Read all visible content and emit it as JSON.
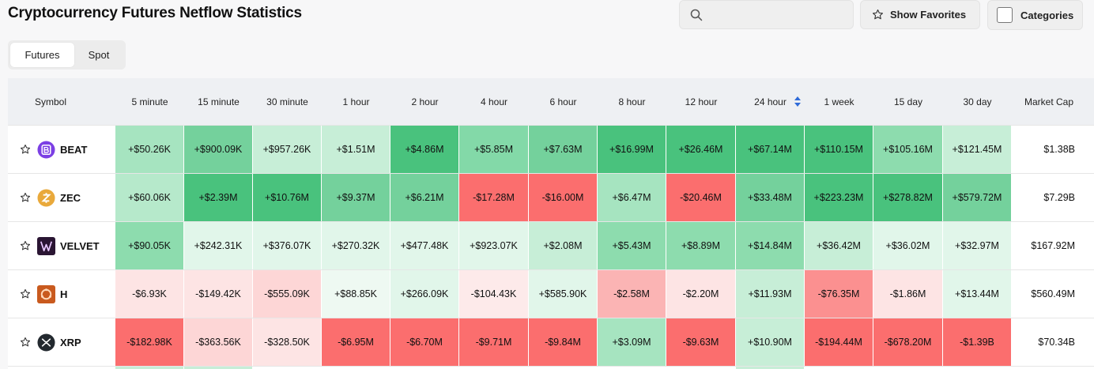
{
  "page": {
    "title": "Cryptocurrency Futures Netflow Statistics"
  },
  "search": {
    "value": "",
    "placeholder": ""
  },
  "buttons": {
    "show_favorites": "Show Favorites",
    "categories": "Categories"
  },
  "tabs": [
    {
      "label": "Futures",
      "active": true
    },
    {
      "label": "Spot",
      "active": false
    }
  ],
  "table": {
    "columns": [
      "Symbol",
      "5 minute",
      "15 minute",
      "30 minute",
      "1 hour",
      "2 hour",
      "4 hour",
      "6 hour",
      "8 hour",
      "12 hour",
      "24 hour",
      "1 week",
      "15 day",
      "30 day",
      "Market Cap"
    ],
    "sorted_column": "24 hour",
    "rows": [
      {
        "symbol": "BEAT",
        "icon": "beat-coin-icon",
        "icon_color": "#7b3fe4",
        "values": [
          "+$50.26K",
          "+$900.09K",
          "+$957.26K",
          "+$1.51M",
          "+$4.86M",
          "+$5.85M",
          "+$7.63M",
          "+$16.99M",
          "+$26.46M",
          "+$67.14M",
          "+$110.15M",
          "+$105.16M",
          "+$121.45M"
        ],
        "colors": [
          "#a6e4c0",
          "#74d19c",
          "#c7eed7",
          "#c7eed7",
          "#49c27d",
          "#83d9a8",
          "#74d19c",
          "#49c27d",
          "#49c27d",
          "#49c27d",
          "#49c27d",
          "#8ddcae",
          "#c7eed7"
        ],
        "market_cap": "$1.38B"
      },
      {
        "symbol": "ZEC",
        "icon": "zec-coin-icon",
        "icon_color": "#e9a93b",
        "values": [
          "+$60.06K",
          "+$2.39M",
          "+$10.76M",
          "+$9.37M",
          "+$6.21M",
          "-$17.28M",
          "-$16.00M",
          "+$6.47M",
          "-$20.46M",
          "+$33.48M",
          "+$223.23M",
          "+$278.82M",
          "+$579.72M"
        ],
        "colors": [
          "#b6e9cb",
          "#49c27d",
          "#49c27d",
          "#74d19c",
          "#74d19c",
          "#fb6e6e",
          "#fb6e6e",
          "#a6e4c0",
          "#fb6e6e",
          "#74d19c",
          "#49c27d",
          "#49c27d",
          "#74d19c"
        ],
        "market_cap": "$7.29B"
      },
      {
        "symbol": "VELVET",
        "icon": "velvet-coin-icon",
        "icon_color": "#2a1533",
        "values": [
          "+$90.05K",
          "+$242.31K",
          "+$376.07K",
          "+$270.32K",
          "+$477.48K",
          "+$923.07K",
          "+$2.08M",
          "+$5.43M",
          "+$8.89M",
          "+$14.84M",
          "+$36.42M",
          "+$36.02M",
          "+$32.97M"
        ],
        "colors": [
          "#8ddcae",
          "#e1f6ea",
          "#e1f6ea",
          "#e1f6ea",
          "#e1f6ea",
          "#e1f6ea",
          "#c7eed7",
          "#8ddcae",
          "#8ddcae",
          "#8ddcae",
          "#c7eed7",
          "#e1f6ea",
          "#e1f6ea"
        ],
        "market_cap": "$167.92M"
      },
      {
        "symbol": "H",
        "icon": "h-coin-icon",
        "icon_color": "#c95a1e",
        "values": [
          "-$6.93K",
          "-$149.42K",
          "-$555.09K",
          "+$88.85K",
          "+$266.09K",
          "-$104.43K",
          "+$585.90K",
          "-$2.58M",
          "-$2.20M",
          "+$11.93M",
          "-$76.35M",
          "-$1.86M",
          "+$13.44M"
        ],
        "colors": [
          "#fde4e4",
          "#fde4e4",
          "#fdd6d6",
          "#eef9f2",
          "#e1f6ea",
          "#fdeaea",
          "#e1f6ea",
          "#fbb4b4",
          "#fde4e4",
          "#c7eed7",
          "#fb9090",
          "#fde4e4",
          "#e1f6ea"
        ],
        "market_cap": "$560.49M"
      },
      {
        "symbol": "XRP",
        "icon": "xrp-coin-icon",
        "icon_color": "#23292f",
        "values": [
          "-$182.98K",
          "-$363.56K",
          "-$328.50K",
          "-$6.95M",
          "-$6.70M",
          "-$9.71M",
          "-$9.84M",
          "+$3.09M",
          "-$9.63M",
          "+$10.90M",
          "-$194.44M",
          "-$678.20M",
          "-$1.39B"
        ],
        "colors": [
          "#fb6e6e",
          "#fdd6d6",
          "#fde4e4",
          "#fb6e6e",
          "#fb6e6e",
          "#fb6e6e",
          "#fb6e6e",
          "#a6e4c0",
          "#fb6e6e",
          "#c7eed7",
          "#fb6e6e",
          "#fb6e6e",
          "#fb6e6e"
        ],
        "market_cap": "$70.34B"
      }
    ]
  }
}
